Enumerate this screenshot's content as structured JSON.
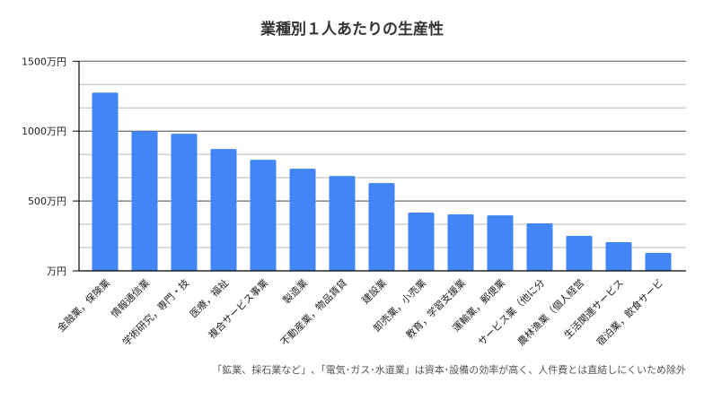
{
  "chart_data": {
    "type": "bar",
    "title": "業種別１人あたりの生産性",
    "xlabel": "",
    "ylabel": "",
    "ylim": [
      0,
      1500
    ],
    "y_ticks": [
      {
        "value": 0,
        "label": "万円"
      },
      {
        "value": 500,
        "label": "500万円"
      },
      {
        "value": 1000,
        "label": "1000万円"
      },
      {
        "value": 1500,
        "label": "1500万円"
      }
    ],
    "minor_grid_step": 166.67,
    "grid": true,
    "bar_color": "#4285f4",
    "categories": [
      "金融業，保険業",
      "情報通信業",
      "学術研究，専門・技",
      "医療，福祉",
      "複合サービス事業",
      "製造業",
      "不動産業，物品賃貸",
      "建設業",
      "卸売業，小売業",
      "教育，学習支援業",
      "運輸業，郵便業",
      "サービス業（他に分",
      "農林漁業（個人経営",
      "生活関連サービス",
      "宿泊業，飲食サービ"
    ],
    "values": [
      1276,
      1000,
      981,
      872,
      795,
      731,
      679,
      628,
      417,
      404,
      397,
      340,
      250,
      205,
      128
    ],
    "footnote": "「鉱業、採石業など」､「電気･ガス･水道業」は資本･設備の効率が高く、人件費とは直結しにくいため除外"
  }
}
